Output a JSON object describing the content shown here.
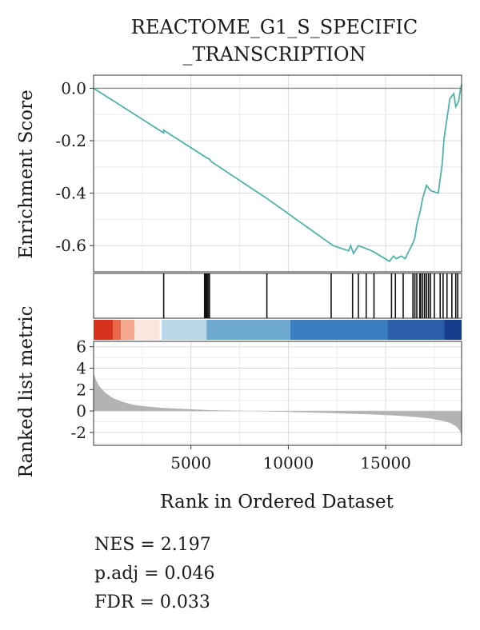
{
  "chart_data": {
    "type": "line",
    "title_lines": [
      "REACTOME_G1_S_SPECIFIC",
      "_TRANSCRIPTION"
    ],
    "es_panel": {
      "ylabel": "Enrichment Score",
      "ylim": [
        -0.7,
        0.05
      ],
      "yticks": [
        0.0,
        -0.2,
        -0.4,
        -0.6
      ],
      "ytick_labels": [
        "0.0",
        "-0.2",
        "-0.4",
        "-0.6"
      ],
      "line_color": "#4fb3a9",
      "zero_line": 0.0,
      "grid": true,
      "series": {
        "x": [
          0,
          3600,
          3600,
          5800,
          5950,
          6050,
          8900,
          12300,
          13100,
          13200,
          13350,
          13600,
          14300,
          15200,
          15400,
          15550,
          15800,
          16000,
          16400,
          16500,
          16600,
          16800,
          16900,
          17100,
          17300,
          17700,
          17900,
          18000,
          18200,
          18300,
          18500,
          18600,
          18750,
          18850,
          18900
        ],
        "y": [
          0.0,
          -0.17,
          -0.16,
          -0.265,
          -0.27,
          -0.28,
          -0.42,
          -0.6,
          -0.62,
          -0.6,
          -0.63,
          -0.6,
          -0.62,
          -0.66,
          -0.64,
          -0.65,
          -0.64,
          -0.65,
          -0.59,
          -0.57,
          -0.52,
          -0.46,
          -0.42,
          -0.37,
          -0.39,
          -0.4,
          -0.29,
          -0.19,
          -0.09,
          -0.04,
          -0.02,
          -0.07,
          -0.05,
          0.0,
          0.015
        ]
      }
    },
    "hits": {
      "positions": [
        3600,
        5700,
        5760,
        5820,
        5880,
        5950,
        8900,
        12200,
        13300,
        13600,
        14000,
        14400,
        15300,
        15500,
        15900,
        16400,
        16500,
        16600,
        16750,
        16800,
        16900,
        17000,
        17100,
        17200,
        17300,
        17500,
        17800,
        17950,
        18150,
        18400,
        18600,
        18700
      ]
    },
    "color_bar": {
      "segments": [
        {
          "from": 0,
          "to": 1000,
          "color": "#d7301f"
        },
        {
          "from": 1000,
          "to": 1400,
          "color": "#e8684c"
        },
        {
          "from": 1400,
          "to": 2100,
          "color": "#f2a88e"
        },
        {
          "from": 2100,
          "to": 3400,
          "color": "#f9e7df"
        },
        {
          "from": 3400,
          "to": 3500,
          "color": "#fbfbfb"
        },
        {
          "from": 3500,
          "to": 5800,
          "color": "#b8d8e8"
        },
        {
          "from": 5800,
          "to": 10100,
          "color": "#6ea9d0"
        },
        {
          "from": 10100,
          "to": 15100,
          "color": "#3a7ec0"
        },
        {
          "from": 15100,
          "to": 18000,
          "color": "#2a5ea8"
        },
        {
          "from": 18000,
          "to": 18900,
          "color": "#153f8c"
        }
      ]
    },
    "ranked_panel": {
      "ylabel": "Ranked list metric",
      "ylim": [
        -3.2,
        6.5
      ],
      "yticks": [
        6,
        4,
        2,
        0,
        -2
      ],
      "ytick_labels": [
        "6",
        "4",
        "2",
        "0",
        "-2"
      ],
      "fill_color": "#b3b3b3",
      "metric_x": [
        0,
        150,
        300,
        600,
        1000,
        1500,
        2000,
        2600,
        3500,
        4500,
        6000,
        8000,
        10000,
        12000,
        14000,
        15500,
        16500,
        17300,
        17900,
        18300,
        18600,
        18800,
        18900
      ],
      "metric_y": [
        3.5,
        2.8,
        2.3,
        1.7,
        1.2,
        0.85,
        0.6,
        0.45,
        0.3,
        0.2,
        0.08,
        0.0,
        -0.08,
        -0.18,
        -0.3,
        -0.42,
        -0.55,
        -0.7,
        -0.9,
        -1.1,
        -1.4,
        -1.8,
        -2.3
      ]
    },
    "xaxis": {
      "xlabel": "Rank in Ordered Dataset",
      "xlim": [
        0,
        18900
      ],
      "xticks": [
        5000,
        10000,
        15000
      ],
      "xtick_labels": [
        "5000",
        "10000",
        "15000"
      ]
    }
  },
  "stats": {
    "nes": "NES = 2.197",
    "padj": "p.adj = 0.046",
    "fdr": "FDR = 0.033"
  }
}
